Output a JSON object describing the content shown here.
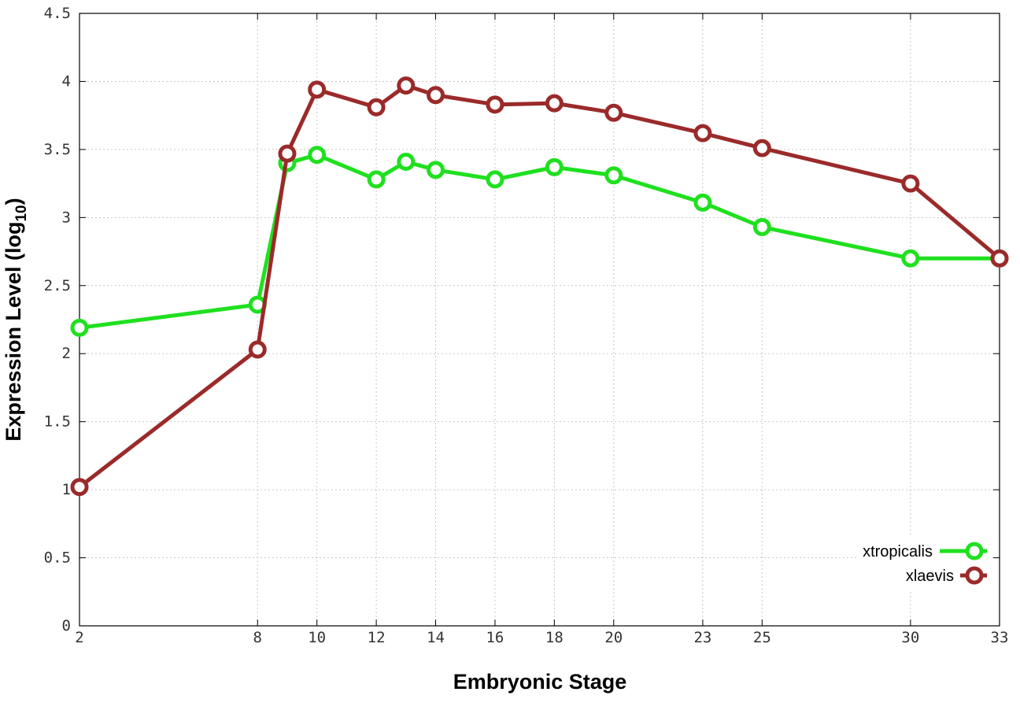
{
  "colors": {
    "xtropicalis": "#1fe01f",
    "xlaevis": "#9b2a2a"
  },
  "chart_data": {
    "type": "line",
    "title": "",
    "xlabel": "Embryonic Stage",
    "ylabel_main": "Expression Level (log",
    "ylabel_sub": "10",
    "ylabel_close": ")",
    "x_ticks": [
      2,
      8,
      10,
      12,
      14,
      16,
      18,
      20,
      23,
      25,
      30,
      33
    ],
    "y_ticks": [
      "0",
      "0.5",
      "1",
      "1.5",
      "2",
      "2.5",
      "3",
      "3.5",
      "4",
      "4.5"
    ],
    "ylim": [
      0,
      4.5
    ],
    "x_positions_stage": [
      2,
      8,
      9,
      10,
      12,
      13,
      14,
      16,
      18,
      20,
      23,
      25,
      30,
      33
    ],
    "grid": true,
    "legend_position": "bottom-right",
    "series": [
      {
        "name": "xtropicalis",
        "color": "#1fe01f",
        "x": [
          2,
          8,
          9,
          10,
          12,
          13,
          14,
          16,
          18,
          20,
          23,
          25,
          30,
          33
        ],
        "y": [
          2.19,
          2.36,
          3.4,
          3.46,
          3.28,
          3.41,
          3.35,
          3.28,
          3.37,
          3.31,
          3.11,
          2.93,
          2.7,
          2.7
        ]
      },
      {
        "name": "xlaevis",
        "color": "#9b2a2a",
        "x": [
          2,
          8,
          9,
          10,
          12,
          13,
          14,
          16,
          18,
          20,
          23,
          25,
          30,
          33
        ],
        "y": [
          1.02,
          2.03,
          3.47,
          3.94,
          3.81,
          3.97,
          3.9,
          3.83,
          3.84,
          3.77,
          3.62,
          3.51,
          3.25,
          2.7
        ]
      }
    ]
  }
}
